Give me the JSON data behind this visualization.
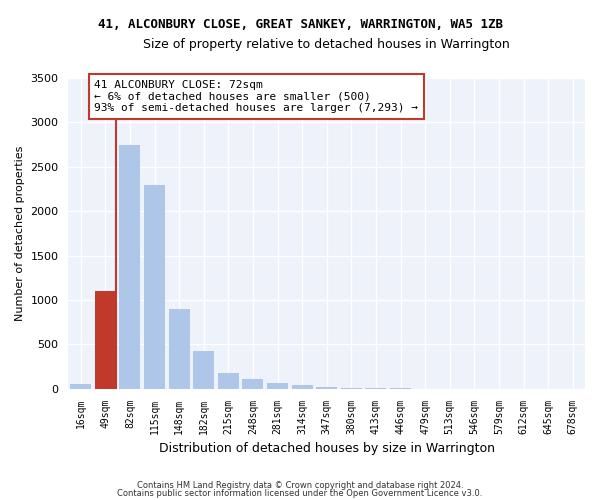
{
  "title": "41, ALCONBURY CLOSE, GREAT SANKEY, WARRINGTON, WA5 1ZB",
  "subtitle": "Size of property relative to detached houses in Warrington",
  "xlabel": "Distribution of detached houses by size in Warrington",
  "ylabel": "Number of detached properties",
  "categories": [
    "16sqm",
    "49sqm",
    "82sqm",
    "115sqm",
    "148sqm",
    "182sqm",
    "215sqm",
    "248sqm",
    "281sqm",
    "314sqm",
    "347sqm",
    "380sqm",
    "413sqm",
    "446sqm",
    "479sqm",
    "513sqm",
    "546sqm",
    "579sqm",
    "612sqm",
    "645sqm",
    "678sqm"
  ],
  "values": [
    50,
    1100,
    2750,
    2300,
    900,
    420,
    175,
    110,
    65,
    40,
    20,
    12,
    6,
    3,
    2,
    1,
    1,
    1,
    0,
    0,
    0
  ],
  "bar_color": "#aec6e8",
  "highlight_bar_index": 1,
  "highlight_bar_color": "#c0392b",
  "vline_color": "#c0392b",
  "annotation_text": "41 ALCONBURY CLOSE: 72sqm\n← 6% of detached houses are smaller (500)\n93% of semi-detached houses are larger (7,293) →",
  "annotation_box_color": "#c0392b",
  "ylim": [
    0,
    3500
  ],
  "yticks": [
    0,
    500,
    1000,
    1500,
    2000,
    2500,
    3000,
    3500
  ],
  "background_color": "#eef2fa",
  "grid_color": "#ffffff",
  "footer_line1": "Contains HM Land Registry data © Crown copyright and database right 2024.",
  "footer_line2": "Contains public sector information licensed under the Open Government Licence v3.0."
}
